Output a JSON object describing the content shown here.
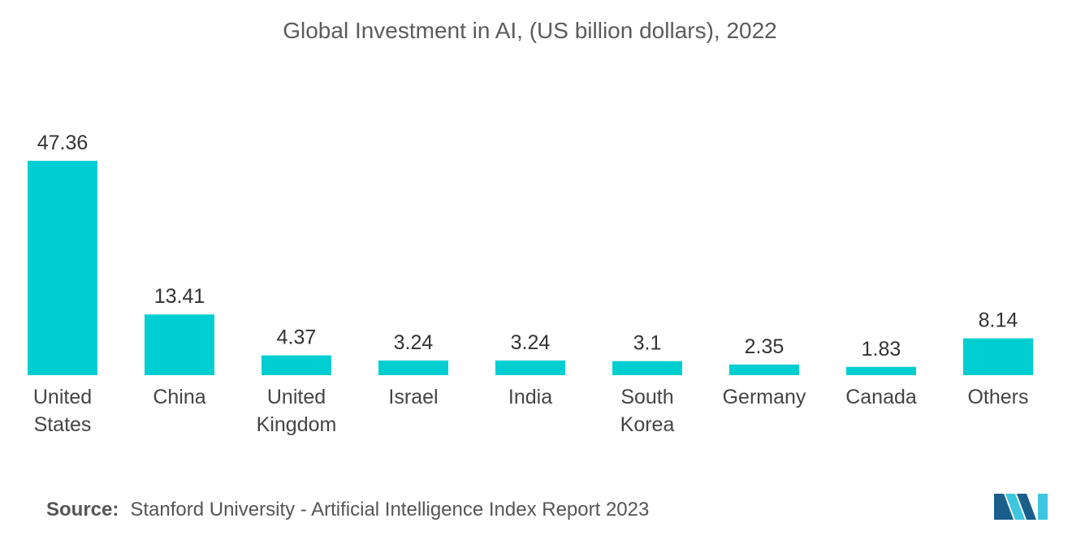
{
  "chart_data": {
    "type": "bar",
    "title": "Global Investment in AI, (US billion dollars), 2022",
    "categories": [
      [
        "United",
        "States"
      ],
      [
        "China"
      ],
      [
        "United",
        "Kingdom"
      ],
      [
        "Israel"
      ],
      [
        "India"
      ],
      [
        "South",
        "Korea"
      ],
      [
        "Germany"
      ],
      [
        "Canada"
      ],
      [
        "Others"
      ]
    ],
    "values": [
      47.36,
      13.41,
      4.37,
      3.24,
      3.24,
      3.1,
      2.35,
      1.83,
      8.14
    ],
    "value_labels": [
      "47.36",
      "13.41",
      "4.37",
      "3.24",
      "3.24",
      "3.1",
      "2.35",
      "1.83",
      "8.14"
    ],
    "xlabel": "",
    "ylabel": "",
    "grid": false,
    "bar_color": "#00ced1"
  },
  "source": {
    "key": "Source:",
    "text": "Stanford University - Artificial Intelligence Index Report 2023"
  },
  "logo": {
    "icon": "mordor-intelligence-logo-icon",
    "colors": [
      "#1a5e8c",
      "#3ec6e0"
    ]
  }
}
